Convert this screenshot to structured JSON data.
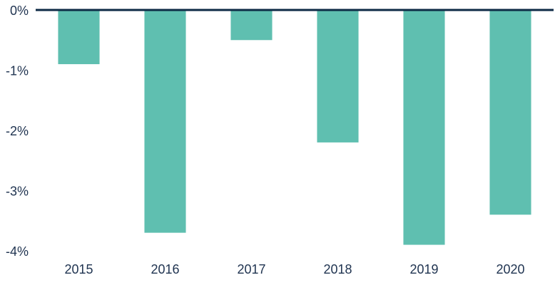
{
  "chart_data": {
    "type": "bar",
    "categories": [
      "2015",
      "2016",
      "2017",
      "2018",
      "2019",
      "2020"
    ],
    "values": [
      -0.9,
      -3.7,
      -0.5,
      -2.2,
      -3.9,
      -3.4
    ],
    "color": "#5fbfb0",
    "ylim": [
      -4,
      0
    ],
    "yticks": [
      {
        "value": 0,
        "label": "0%"
      },
      {
        "value": -1,
        "label": "-1%"
      },
      {
        "value": -2,
        "label": "-2%"
      },
      {
        "value": -3,
        "label": "-3%"
      },
      {
        "value": -4,
        "label": "-4%"
      }
    ],
    "grid": false
  }
}
